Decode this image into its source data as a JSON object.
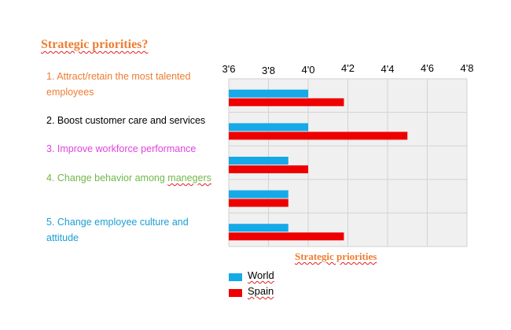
{
  "page_title": "Strategic priorities?",
  "categories": [
    {
      "text_parts": [
        "1. Attract/retain the most talented employees"
      ],
      "color": "#ed7d31"
    },
    {
      "text_parts": [
        "2. Boost customer care and services"
      ],
      "color": "#000000"
    },
    {
      "text_parts": [
        "3. Improve workforce performance"
      ],
      "color": "#e043e0"
    },
    {
      "text_parts": [
        "4. Change behavior among ",
        "manegers"
      ],
      "color": "#70b84a"
    },
    {
      "text_parts": [
        "5. Change employee culture and attitude"
      ],
      "color": "#1a9fd4"
    }
  ],
  "chart_data": {
    "type": "bar",
    "orientation": "horizontal",
    "title": "Strategic priorities",
    "categories": [
      "1. Attract/retain the most talented employees",
      "2. Boost customer care and services",
      "3. Improve workforce performance",
      "4. Change behavior among manegers",
      "5. Change employee culture and attitude"
    ],
    "series": [
      {
        "name": "World",
        "color": "#16a9e8",
        "values": [
          4.0,
          4.0,
          3.9,
          3.9,
          3.9
        ]
      },
      {
        "name": "Spain",
        "color": "#ee0000",
        "values": [
          4.18,
          4.5,
          4.0,
          3.9,
          4.18
        ]
      }
    ],
    "xlim": [
      3.6,
      4.8
    ],
    "ticks": [
      3.6,
      3.8,
      4.0,
      4.2,
      4.4,
      4.6,
      4.8
    ],
    "tick_labels": [
      "3'6",
      "3'8",
      "4'0",
      "4'2",
      "4'4",
      "4'6",
      "4'8"
    ],
    "axis_position": "top",
    "grid": true,
    "legend_position": "bottom"
  }
}
